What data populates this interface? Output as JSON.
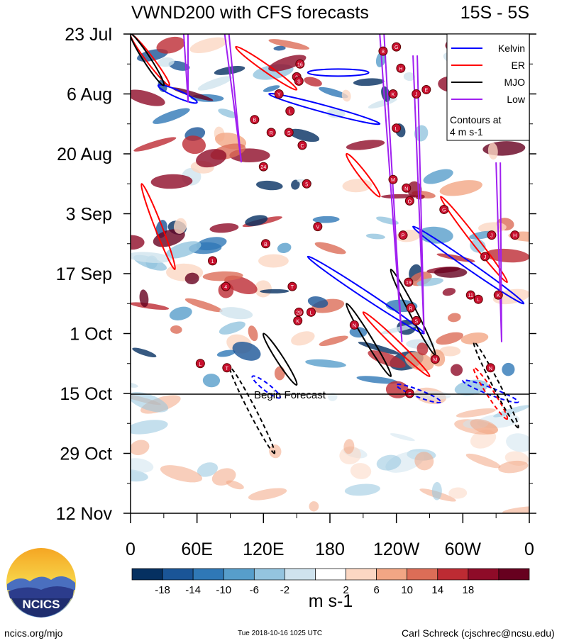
{
  "chart_data": {
    "type": "heatmap",
    "title": "VWND200 with CFS forecasts",
    "subtitle": "15S - 5S",
    "xlabel": "",
    "ylabel": "",
    "x_ticks": [
      "0",
      "60E",
      "120E",
      "180",
      "120W",
      "60W",
      "0"
    ],
    "x_tick_values": [
      0,
      60,
      120,
      180,
      240,
      300,
      360
    ],
    "y_ticks": [
      "23 Jul",
      "6 Aug",
      "20 Aug",
      "3 Sep",
      "17 Sep",
      "1 Oct",
      "15 Oct",
      "29 Oct",
      "12 Nov"
    ],
    "y_tick_values": [
      0,
      14,
      28,
      42,
      56,
      70,
      84,
      98,
      112
    ],
    "xlim": [
      0,
      360
    ],
    "ylim": [
      0,
      112
    ],
    "forecast_start_day": 84,
    "forecast_label": "Begin Forecast",
    "colorbar": {
      "units": "m s-1",
      "labels": [
        "-18",
        "-14",
        "-10",
        "-6",
        "-2",
        "2",
        "6",
        "10",
        "14",
        "18"
      ],
      "colors": [
        "#053061",
        "#1a5597",
        "#2f78b6",
        "#579ecb",
        "#94c4df",
        "#cfe3ee",
        "#ffffff",
        "#fbd7c3",
        "#f2a684",
        "#dc6d57",
        "#bd2b33",
        "#8e0b28",
        "#67001f"
      ]
    },
    "legend": {
      "placement": "top-right",
      "entries": [
        {
          "label": "Kelvin",
          "color": "#0000ff"
        },
        {
          "label": "ER",
          "color": "#ff0000"
        },
        {
          "label": "MJO",
          "color": "#000000"
        },
        {
          "label": "Low",
          "color": "#a020f0"
        }
      ],
      "note": "Contours at 4 m s-1"
    },
    "kelvin_waves": [
      {
        "lon": [
          160,
          215
        ],
        "day": [
          9,
          9
        ]
      },
      {
        "lon": [
          125,
          225
        ],
        "day": [
          14,
          21
        ]
      },
      {
        "lon": [
          25,
          60
        ],
        "day": [
          12,
          16
        ]
      },
      {
        "lon": [
          110,
          135
        ],
        "day": [
          80,
          85
        ]
      },
      {
        "lon": [
          160,
          265
        ],
        "day": [
          52,
          70
        ]
      },
      {
        "lon": [
          255,
          355
        ],
        "day": [
          45,
          63
        ]
      },
      {
        "lon": [
          300,
          350
        ],
        "day": [
          81,
          86
        ]
      },
      {
        "lon": [
          240,
          280
        ],
        "day": [
          82,
          86
        ]
      }
    ],
    "er_waves": [
      {
        "lon": [
          0,
          35
        ],
        "day": [
          0,
          12
        ]
      },
      {
        "lon": [
          95,
          150
        ],
        "day": [
          3,
          13
        ]
      },
      {
        "lon": [
          195,
          225
        ],
        "day": [
          28,
          38
        ]
      },
      {
        "lon": [
          10,
          40
        ],
        "day": [
          35,
          55
        ]
      },
      {
        "lon": [
          210,
          270
        ],
        "day": [
          65,
          80
        ]
      },
      {
        "lon": [
          280,
          340
        ],
        "day": [
          38,
          58
        ]
      },
      {
        "lon": [
          310,
          340
        ],
        "day": [
          78,
          90
        ]
      }
    ],
    "mjo_waves": [
      {
        "lon": [
          0,
          30
        ],
        "day": [
          0,
          12
        ]
      },
      {
        "lon": [
          120,
          150
        ],
        "day": [
          70,
          82
        ]
      },
      {
        "lon": [
          195,
          235
        ],
        "day": [
          63,
          80
        ]
      },
      {
        "lon": [
          235,
          275
        ],
        "day": [
          55,
          75
        ]
      },
      {
        "lon": [
          310,
          350
        ],
        "day": [
          72,
          92
        ]
      },
      {
        "lon": [
          90,
          130
        ],
        "day": [
          78,
          98
        ]
      }
    ],
    "low_tracks": [
      {
        "lon": [
          48,
          52
        ],
        "day": [
          0,
          16
        ]
      },
      {
        "lon": [
          85,
          100
        ],
        "day": [
          0,
          30
        ]
      },
      {
        "lon": [
          225,
          245
        ],
        "day": [
          0,
          72
        ]
      },
      {
        "lon": [
          255,
          265
        ],
        "day": [
          5,
          70
        ]
      },
      {
        "lon": [
          330,
          335
        ],
        "day": [
          30,
          72
        ]
      }
    ],
    "cyclones": [
      {
        "label": "8",
        "lon": 228,
        "day": 4
      },
      {
        "label": "16",
        "lon": 153,
        "day": 7
      },
      {
        "label": "9",
        "lon": 150,
        "day": 10
      },
      {
        "label": "S",
        "lon": 152,
        "day": 11
      },
      {
        "label": "Y",
        "lon": 134,
        "day": 14
      },
      {
        "label": "L",
        "lon": 144,
        "day": 18
      },
      {
        "label": "B",
        "lon": 112,
        "day": 20
      },
      {
        "label": "R",
        "lon": 127,
        "day": 23
      },
      {
        "label": "S",
        "lon": 143,
        "day": 23
      },
      {
        "label": "C",
        "lon": 155,
        "day": 26
      },
      {
        "label": "24",
        "lon": 120,
        "day": 31
      },
      {
        "label": "G",
        "lon": 240,
        "day": 3
      },
      {
        "label": "H",
        "lon": 244,
        "day": 8
      },
      {
        "label": "K",
        "lon": 237,
        "day": 14
      },
      {
        "label": "J",
        "lon": 258,
        "day": 14
      },
      {
        "label": "E",
        "lon": 267,
        "day": 13
      },
      {
        "label": "L",
        "lon": 240,
        "day": 22
      },
      {
        "label": "M",
        "lon": 237,
        "day": 34
      },
      {
        "label": "N",
        "lon": 249,
        "day": 36
      },
      {
        "label": "O",
        "lon": 252,
        "day": 39
      },
      {
        "label": "G",
        "lon": 283,
        "day": 41
      },
      {
        "label": "P",
        "lon": 246,
        "day": 47
      },
      {
        "label": "J",
        "lon": 326,
        "day": 47
      },
      {
        "label": "H",
        "lon": 347,
        "day": 47
      },
      {
        "label": "J",
        "lon": 320,
        "day": 52
      },
      {
        "label": "19",
        "lon": 251,
        "day": 58
      },
      {
        "label": "11",
        "lon": 307,
        "day": 61
      },
      {
        "label": "L",
        "lon": 314,
        "day": 62
      },
      {
        "label": "K",
        "lon": 332,
        "day": 61
      },
      {
        "label": "R",
        "lon": 253,
        "day": 64
      },
      {
        "label": "S",
        "lon": 258,
        "day": 67
      },
      {
        "label": "N",
        "lon": 202,
        "day": 68
      },
      {
        "label": "M",
        "lon": 275,
        "day": 76
      },
      {
        "label": "N",
        "lon": 325,
        "day": 78
      },
      {
        "label": "S",
        "lon": 252,
        "day": 84
      },
      {
        "label": "5",
        "lon": 159,
        "day": 35
      },
      {
        "label": "V",
        "lon": 169,
        "day": 45
      },
      {
        "label": "B",
        "lon": 122,
        "day": 49
      },
      {
        "label": "1",
        "lon": 74,
        "day": 53
      },
      {
        "label": "4",
        "lon": 86,
        "day": 59
      },
      {
        "label": "T",
        "lon": 146,
        "day": 59
      },
      {
        "label": "29",
        "lon": 152,
        "day": 65
      },
      {
        "label": "K",
        "lon": 151,
        "day": 67
      },
      {
        "label": "L",
        "lon": 163,
        "day": 65
      },
      {
        "label": "L",
        "lon": 63,
        "day": 77
      },
      {
        "label": "T",
        "lon": 87,
        "day": 78
      }
    ]
  },
  "footer": {
    "url": "ncics.org/mjo",
    "timestamp": "Tue 2018-10-16 1025 UTC",
    "author": "Carl Schreck (cjschrec@ncsu.edu)",
    "logo_text": "NCICS"
  }
}
